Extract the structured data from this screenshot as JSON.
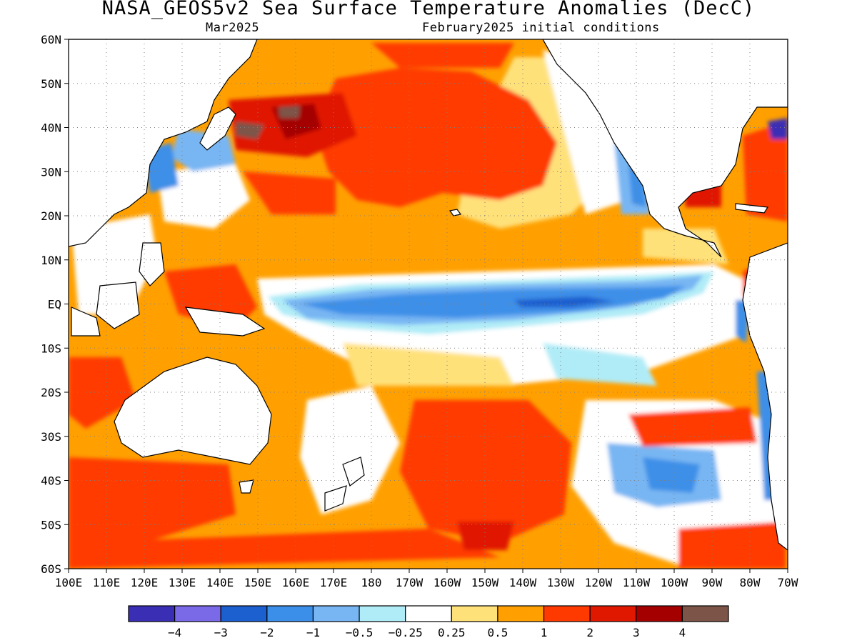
{
  "title": "NASA_GEOS5v2 Sea Surface Temperature Anomalies (DecC)",
  "valid_month": "Mar2025",
  "init_conditions": "February2025 initial conditions",
  "lat_labels": [
    "60N",
    "50N",
    "40N",
    "30N",
    "20N",
    "10N",
    "EQ",
    "10S",
    "20S",
    "30S",
    "40S",
    "50S",
    "60S"
  ],
  "lon_labels": [
    "100E",
    "110E",
    "120E",
    "130E",
    "140E",
    "150E",
    "160E",
    "170E",
    "180",
    "170W",
    "160W",
    "150W",
    "140W",
    "130W",
    "120W",
    "110W",
    "100W",
    "90W",
    "80W",
    "70W"
  ],
  "legend": {
    "colors": [
      "#3a2fb4",
      "#7b6ae8",
      "#1c5fcf",
      "#3c8fe8",
      "#78b6f3",
      "#b0ecf7",
      "#ffffff",
      "#ffe17a",
      "#ffa000",
      "#ff3a00",
      "#e01800",
      "#a50000",
      "#7d5448"
    ],
    "ticks": [
      "−4",
      "−3",
      "−2",
      "−1",
      "−0.5",
      "−0.25",
      "0.25",
      "0.5",
      "1",
      "2",
      "3",
      "4"
    ]
  },
  "map": {
    "land_color": "#ffffff",
    "coastline_color": "#000000",
    "grid": "dotted",
    "region_lon": [
      100,
      -70
    ],
    "region_lat": [
      -60,
      60
    ]
  }
}
